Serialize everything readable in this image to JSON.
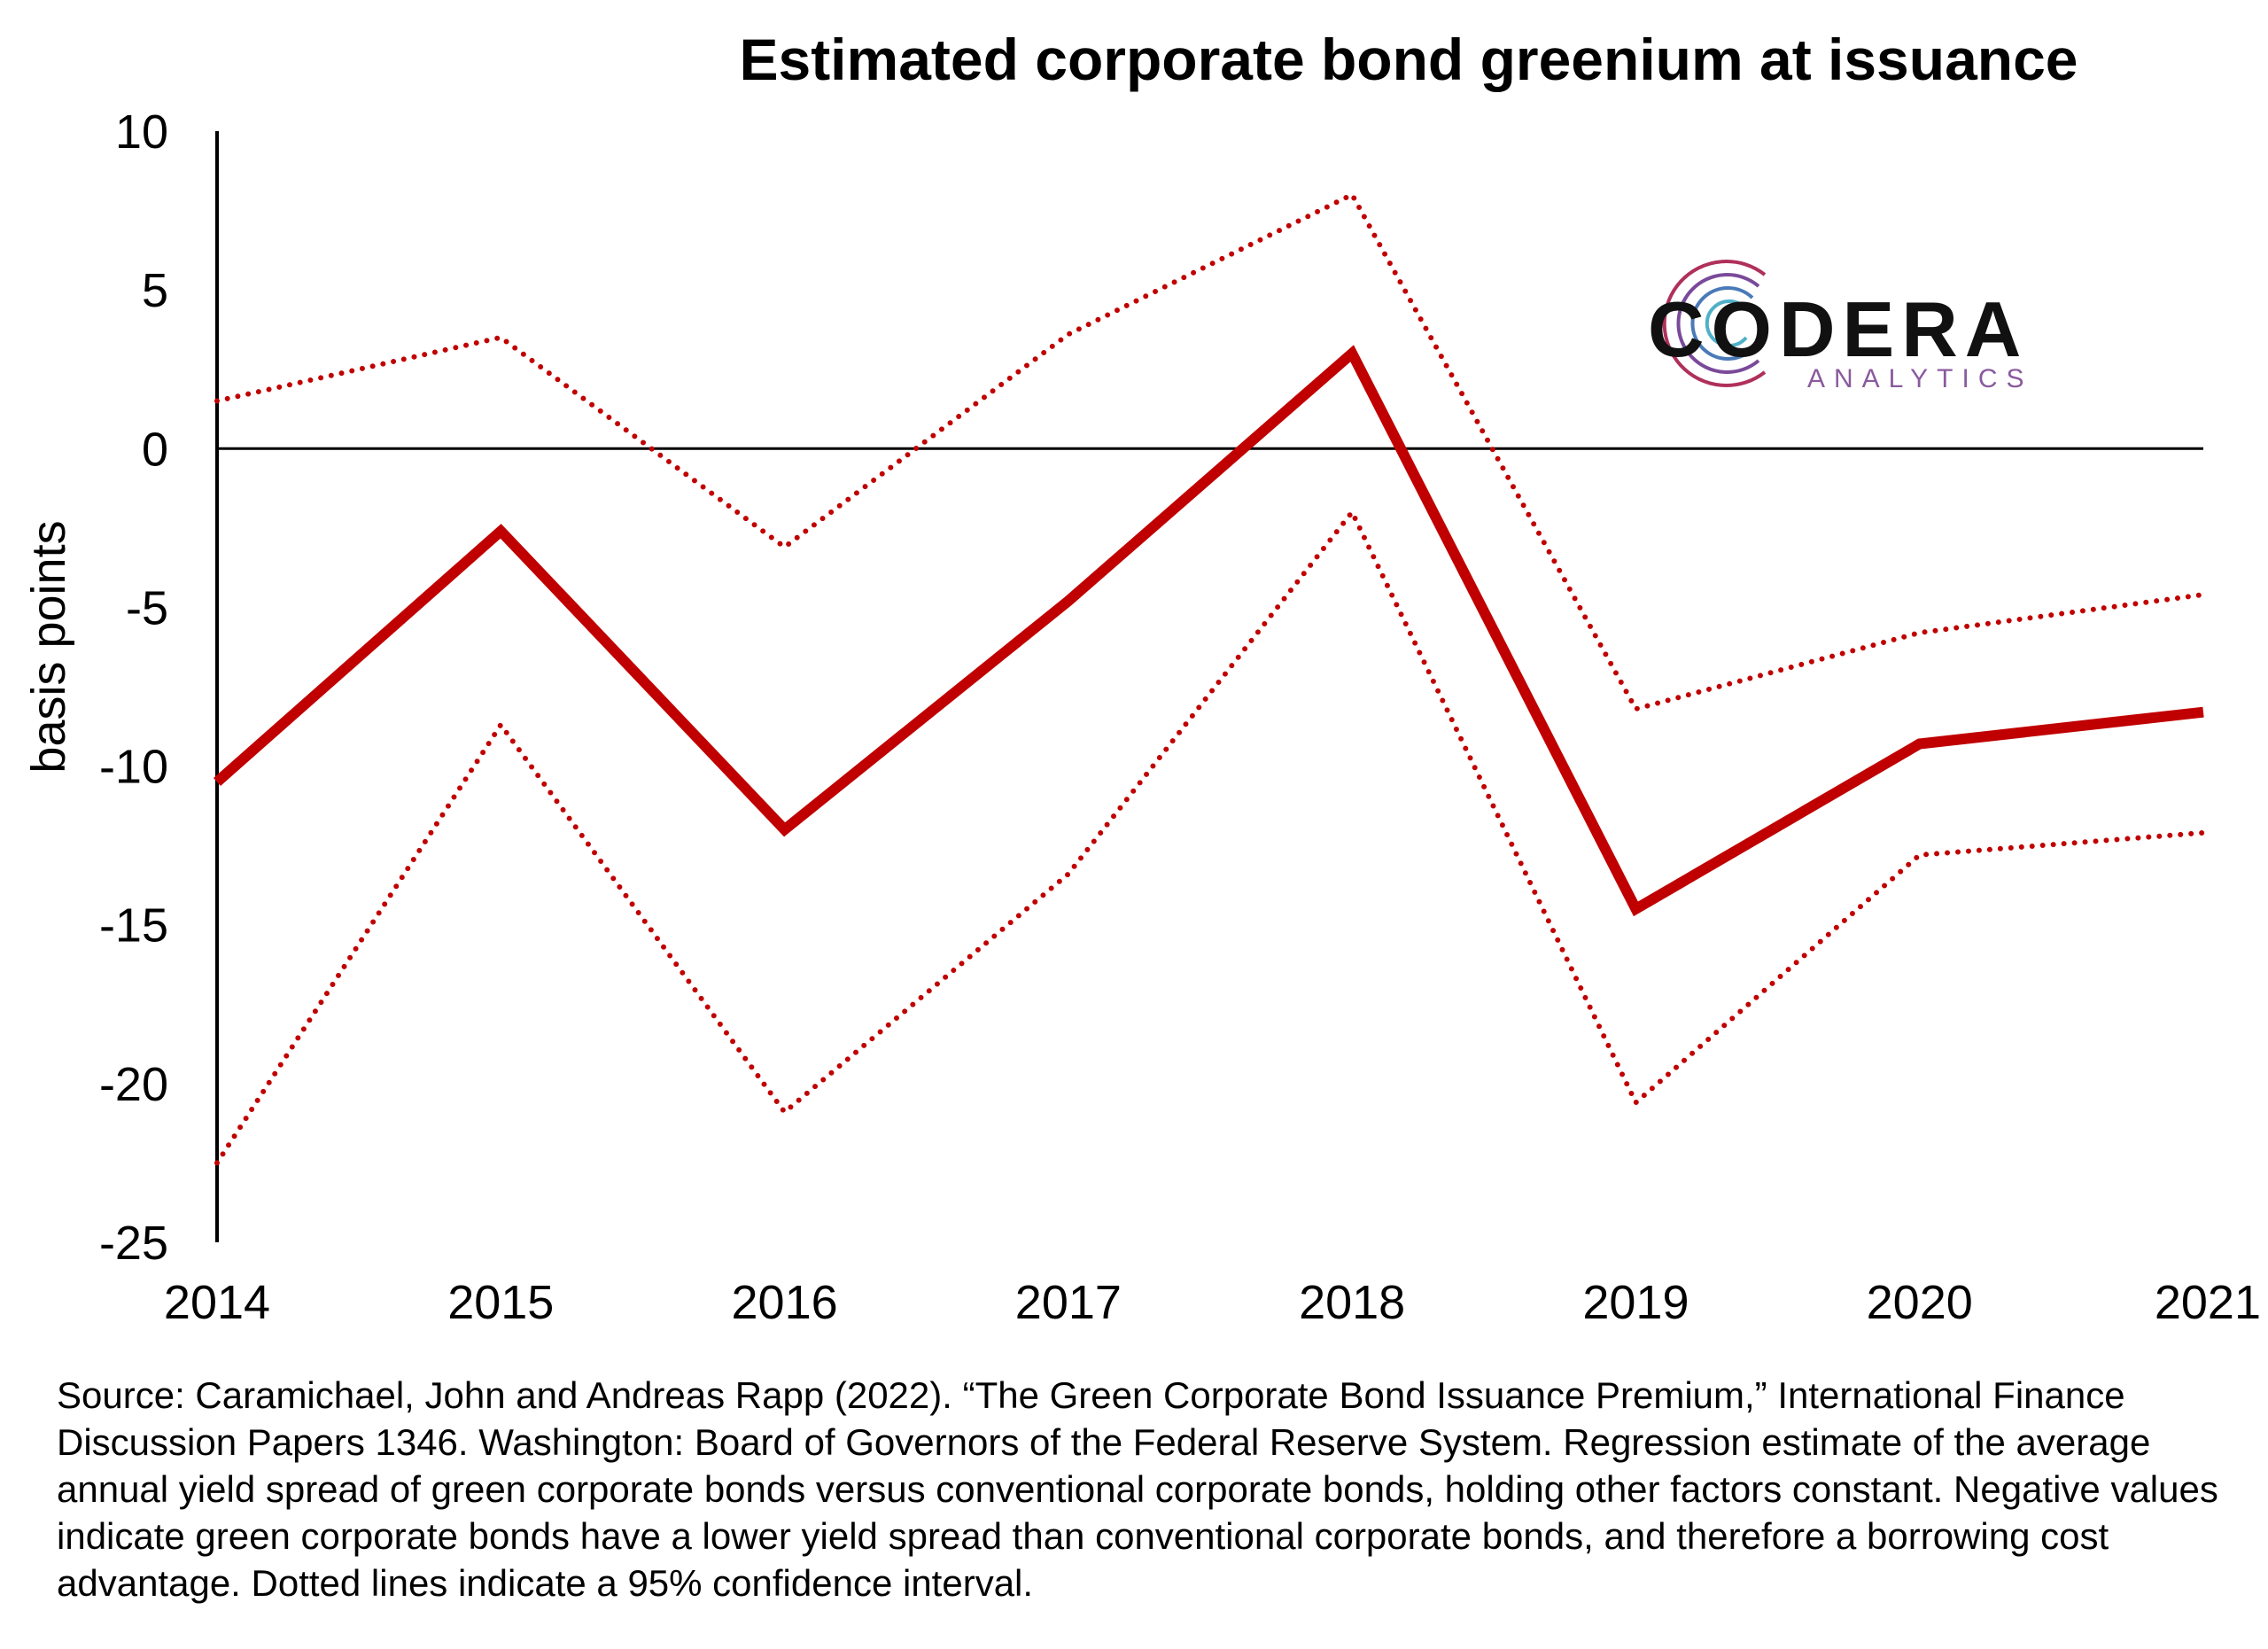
{
  "chart_data": {
    "type": "line",
    "title": "Estimated corporate bond greenium at issuance",
    "ylabel": "basis points",
    "xlabel": "",
    "x": [
      "2014",
      "2015",
      "2016",
      "2017",
      "2018",
      "2019",
      "2020",
      "2021"
    ],
    "ylim": [
      -25,
      10
    ],
    "yticks": [
      10,
      5,
      0,
      -5,
      -10,
      -15,
      -20,
      -25
    ],
    "series": [
      {
        "name": "",
        "style": "solid",
        "color": "#c00000",
        "values": [
          -10.5,
          -2.6,
          -12.0,
          -4.8,
          3.0,
          -14.5,
          -9.3,
          -8.3
        ]
      },
      {
        "name": "",
        "style": "dotted",
        "color": "#c00000",
        "values": [
          1.5,
          3.5,
          -3.1,
          3.6,
          8.0,
          -8.2,
          -5.8,
          -4.6
        ]
      },
      {
        "name": "",
        "style": "dotted",
        "color": "#c00000",
        "values": [
          -22.5,
          -8.7,
          -20.9,
          -13.4,
          -2.0,
          -20.6,
          -12.8,
          -12.1
        ]
      }
    ],
    "zero_line": true,
    "grid": false
  },
  "logo": {
    "main": "CODERA",
    "sub": "ANALYTICS",
    "sub_color": "#8a5a9e"
  },
  "source_text": "Source: Caramichael, John and Andreas Rapp (2022). “The Green Corporate Bond Issuance Premium,” International Finance Discussion Papers 1346. Washington: Board of Governors of the Federal Reserve System. Regression estimate of the average annual yield spread of green corporate bonds versus conventional corporate bonds, holding other factors constant. Negative values indicate green corporate bonds have a lower yield spread than conventional corporate bonds, and therefore a borrowing cost advantage. Dotted lines indicate a 95% confidence interval."
}
